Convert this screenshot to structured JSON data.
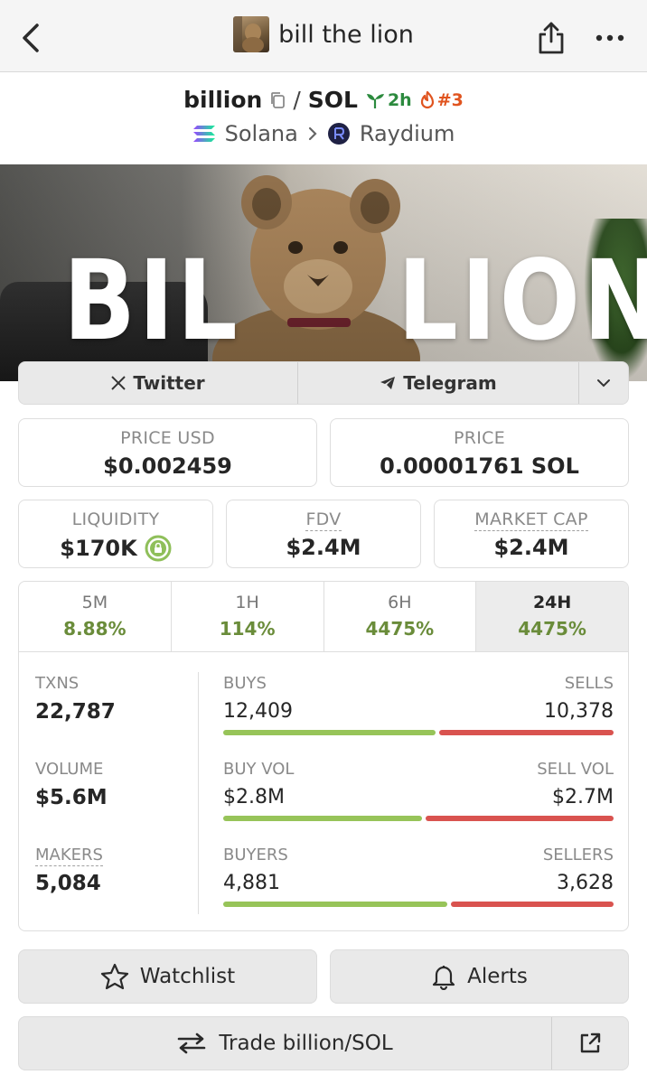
{
  "header": {
    "title": "bill the lion",
    "back_icon": "chevron-left-icon",
    "share_icon": "share-icon",
    "more_icon": "more-dots-icon"
  },
  "pair": {
    "base": "billion",
    "slash": "/",
    "quote": "SOL",
    "age": "2h",
    "rank": "#3",
    "chain": "Solana",
    "dex": "Raydium"
  },
  "banner": {
    "left_text": "BIL",
    "right_text": "LION"
  },
  "socials": {
    "twitter": "Twitter",
    "telegram": "Telegram"
  },
  "prices": {
    "price_usd_label": "PRICE USD",
    "price_usd": "$0.002459",
    "price_label": "PRICE",
    "price_sol": "0.00001761 SOL",
    "liquidity_label": "LIQUIDITY",
    "liquidity": "$170K",
    "fdv_label": "FDV",
    "fdv": "$2.4M",
    "mcap_label": "MARKET CAP",
    "mcap": "$2.4M"
  },
  "tabs": [
    {
      "label": "5M",
      "value": "8.88%"
    },
    {
      "label": "1H",
      "value": "114%"
    },
    {
      "label": "6H",
      "value": "4475%"
    },
    {
      "label": "24H",
      "value": "4475%"
    }
  ],
  "metrics": {
    "txns_label": "TXNS",
    "txns": "22,787",
    "volume_label": "VOLUME",
    "volume": "$5.6M",
    "makers_label": "MAKERS",
    "makers": "5,084"
  },
  "split": {
    "buys_label": "BUYS",
    "buys": "12,409",
    "sells_label": "SELLS",
    "sells": "10,378",
    "buys_share": 0.545,
    "buyvol_label": "BUY VOL",
    "buyvol": "$2.8M",
    "sellvol_label": "SELL VOL",
    "sellvol": "$2.7M",
    "buyvol_share": 0.509,
    "buyers_label": "BUYERS",
    "buyers": "4,881",
    "sellers_label": "SELLERS",
    "sellers": "3,628",
    "buyers_share": 0.574
  },
  "actions": {
    "watchlist": "Watchlist",
    "alerts": "Alerts",
    "trade": "Trade billion/SOL"
  },
  "colors": {
    "green_text": "#6a8c3a",
    "buy_bar": "#97c459",
    "sell_bar": "#d9534f",
    "age_green": "#2c8a3e",
    "rank_orange": "#e0541f"
  }
}
